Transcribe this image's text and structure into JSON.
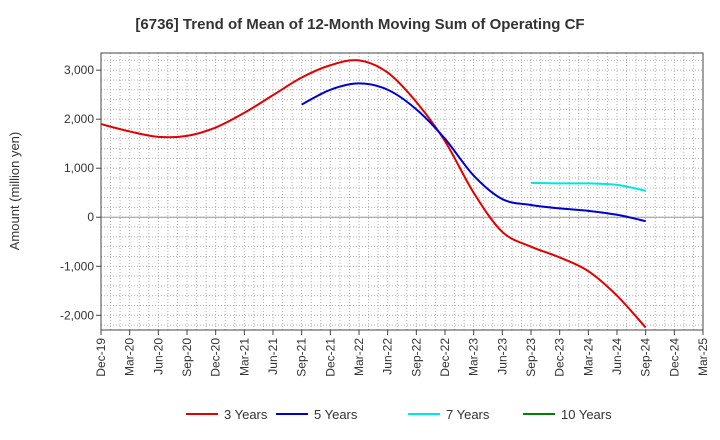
{
  "chart_data": {
    "type": "line",
    "title": "[6736]  Trend of Mean of 12-Month Moving Sum of Operating CF",
    "xlabel": "",
    "ylabel": "Amount (million yen)",
    "ylim": [
      -2300,
      3350
    ],
    "yticks": [
      3000,
      2000,
      1000,
      0,
      -1000,
      -2000
    ],
    "ytick_labels": [
      "3,000",
      "2,000",
      "1,000",
      "0",
      "-1,000",
      "-2,000"
    ],
    "categories": [
      "Dec-19",
      "Mar-20",
      "Jun-20",
      "Sep-20",
      "Dec-20",
      "Mar-21",
      "Jun-21",
      "Sep-21",
      "Dec-21",
      "Mar-22",
      "Jun-22",
      "Sep-22",
      "Dec-22",
      "Mar-23",
      "Jun-23",
      "Sep-23",
      "Dec-23",
      "Mar-24",
      "Jun-24",
      "Sep-24",
      "Dec-24",
      "Mar-25"
    ],
    "grid": true,
    "legend_position": "bottom",
    "series": [
      {
        "name": "3 Years",
        "color": "#e00000",
        "values": [
          1900,
          1750,
          1640,
          1660,
          1830,
          2130,
          2490,
          2850,
          3100,
          3200,
          2950,
          2350,
          1550,
          500,
          -300,
          -600,
          -820,
          -1100,
          -1600,
          -2250,
          null,
          null
        ]
      },
      {
        "name": "5 Years",
        "color": "#0000cc",
        "values": [
          null,
          null,
          null,
          null,
          null,
          null,
          null,
          2300,
          2600,
          2730,
          2600,
          2200,
          1600,
          850,
          370,
          250,
          180,
          130,
          50,
          -80,
          null,
          null
        ]
      },
      {
        "name": "7 Years",
        "color": "#00e5e5",
        "values": [
          null,
          null,
          null,
          null,
          null,
          null,
          null,
          null,
          null,
          null,
          null,
          null,
          null,
          null,
          null,
          700,
          690,
          690,
          660,
          540,
          null,
          null
        ]
      },
      {
        "name": "10 Years",
        "color": "#008000",
        "values": [
          null,
          null,
          null,
          null,
          null,
          null,
          null,
          null,
          null,
          null,
          null,
          null,
          null,
          null,
          null,
          null,
          null,
          null,
          null,
          null,
          null,
          null
        ]
      }
    ]
  }
}
